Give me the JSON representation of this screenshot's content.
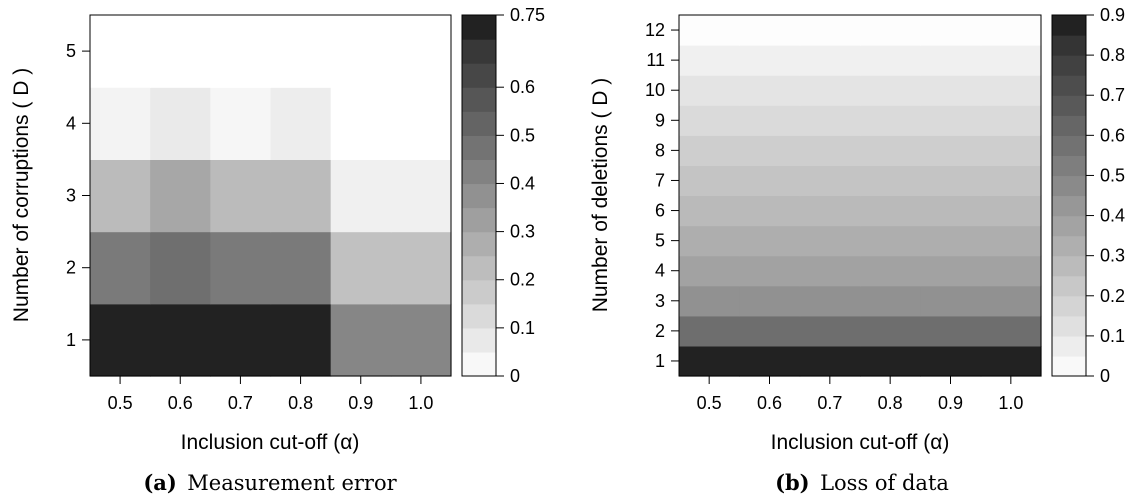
{
  "chart_data": [
    {
      "type": "heatmap",
      "caption_tag": "(a)",
      "caption": "Measurement error",
      "xlabel": "Inclusion cut-off (α)",
      "ylabel": "Number of corruptions ( D )",
      "x_categories": [
        "0.5",
        "0.6",
        "0.7",
        "0.8",
        "0.9",
        "1.0"
      ],
      "y_categories": [
        "1",
        "2",
        "3",
        "4",
        "5"
      ],
      "values": [
        [
          0.75,
          0.75,
          0.75,
          0.75,
          0.41,
          0.41
        ],
        [
          0.45,
          0.49,
          0.45,
          0.45,
          0.21,
          0.21
        ],
        [
          0.23,
          0.3,
          0.23,
          0.23,
          0.05,
          0.05
        ],
        [
          0.04,
          0.07,
          0.03,
          0.06,
          0.0,
          0.0
        ],
        [
          0.0,
          0.0,
          0.0,
          0.0,
          0.0,
          0.0
        ]
      ],
      "colorbar": {
        "range": [
          0,
          0.75
        ],
        "ticks": [
          "0",
          "0.1",
          "0.2",
          "0.3",
          "0.4",
          "0.5",
          "0.6",
          "0.75"
        ],
        "tick_values": [
          0,
          0.1,
          0.2,
          0.3,
          0.4,
          0.5,
          0.6,
          0.75
        ],
        "levels": 15
      }
    },
    {
      "type": "heatmap",
      "caption_tag": "(b)",
      "caption": "Loss of data",
      "xlabel": "Inclusion cut-off (α)",
      "ylabel": "Number of deletions ( D )",
      "x_categories": [
        "0.5",
        "0.6",
        "0.7",
        "0.8",
        "0.9",
        "1.0"
      ],
      "y_categories": [
        "1",
        "2",
        "3",
        "4",
        "5",
        "6",
        "7",
        "8",
        "9",
        "10",
        "11",
        "12"
      ],
      "row_values": [
        0.9,
        0.59,
        0.45,
        0.38,
        0.33,
        0.28,
        0.24,
        0.2,
        0.15,
        0.11,
        0.06,
        0.01
      ],
      "colorbar": {
        "range": [
          0,
          0.9
        ],
        "ticks": [
          "0",
          "0.1",
          "0.2",
          "0.3",
          "0.4",
          "0.5",
          "0.6",
          "0.7",
          "0.8",
          "0.9"
        ],
        "tick_values": [
          0,
          0.1,
          0.2,
          0.3,
          0.4,
          0.5,
          0.6,
          0.7,
          0.8,
          0.9
        ],
        "levels": 18
      }
    }
  ]
}
